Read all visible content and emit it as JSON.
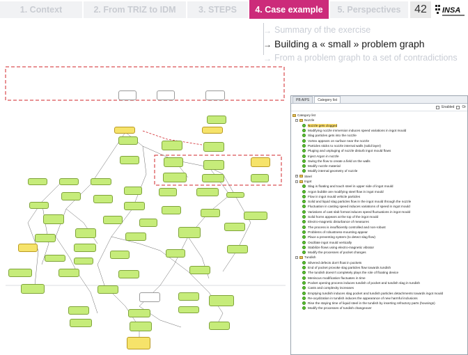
{
  "nav": {
    "tabs": [
      {
        "label": "1. Context",
        "active": false
      },
      {
        "label": "2. From TRIZ to IDM",
        "active": false
      },
      {
        "label": "3. STEPS",
        "active": false
      },
      {
        "label": "4. Case example",
        "active": true
      },
      {
        "label": "5. Perspectives",
        "active": false
      }
    ],
    "page_number": "42",
    "logo_text": "INSA"
  },
  "outline": [
    {
      "label": "Summary of the exercise",
      "state": "dim"
    },
    {
      "label": "Building a « small » problem graph",
      "state": "current"
    },
    {
      "label": "From a problem graph to a set of contradictions",
      "state": "dim"
    }
  ],
  "panel": {
    "tabs": [
      "PB AIPS",
      "Category list"
    ],
    "active_tab": "Category list",
    "options": [
      "Enabled",
      "Or"
    ],
    "root_label": "Category list",
    "categories": [
      {
        "name": "Nozzle",
        "items": [
          "Nozzle gets clogged",
          "Modifying nozzle immersion induces speed variations in ingot mould",
          "Slag particles gets into the nozzle",
          "Vortex appears on surface near the nozzle",
          "Particles sticks to nozzle internal walls (solid layer)",
          "Pluging and unpluging of nozzle disturb ingot mould flows",
          "Inject Argon in nozzle",
          "Swing the flow to create a field on the walls",
          "Modify nozzle material",
          "Modify internal geometry of nozzle"
        ]
      },
      {
        "name": "Steel",
        "items": []
      },
      {
        "name": "Ingot",
        "items": [
          "Slag is floating and touch steel in upper side of ingot mould",
          "Argon bubble are modifying steel flow in ingot mould",
          "Flow in ingot mould vehicle particles",
          "Solid and liquid slag particles flow in the ingot mould through the nozzle",
          "Fluctuation in casting speed induces variations of speed in ingot mould",
          "Variations of cast slab format induces speed fluctuations in ingot mould",
          "Solid horns appears at the top of the ingot mould",
          "Electro-magnetic disturbance of measures",
          "The process is insufficiently controlled and non-robust",
          "Problems of robustness-mounting appear",
          "Place a preventing system (to detect slag flow)",
          "Oscillate ingot mould vertically",
          "Stabilize flows using electro-magnetic vibrator",
          "Modify the processes of pocket changes"
        ]
      },
      {
        "name": "Tundish",
        "items": [
          "Silvered defects don't float in pockets",
          "End of pocket provoke slag particles flow towards tundish",
          "The tundish doesn't completely plays the role of floating device",
          "Meniscus modification fluctuates in time",
          "Pocket opening process induces tundish of pocket and tundish slag in tundish",
          "Casts and complexity increases",
          "Emptying tundish induces slag pocket and tundish particles detachments towards ingot mould",
          "Re-oxydization in tundish induces the appearance of new harmful inclusions",
          "Rise the staying time of liquid steel in the tundish by inserting refractory parts (housings)",
          "Modify the processes of tundish changeover"
        ]
      }
    ]
  },
  "colors": {
    "accent": "#cc2b7a",
    "node_green": "#c6ec7a",
    "node_yellow": "#f6e36a",
    "highlight_dash": "#d0252a",
    "status_dot": "#5bc231"
  }
}
